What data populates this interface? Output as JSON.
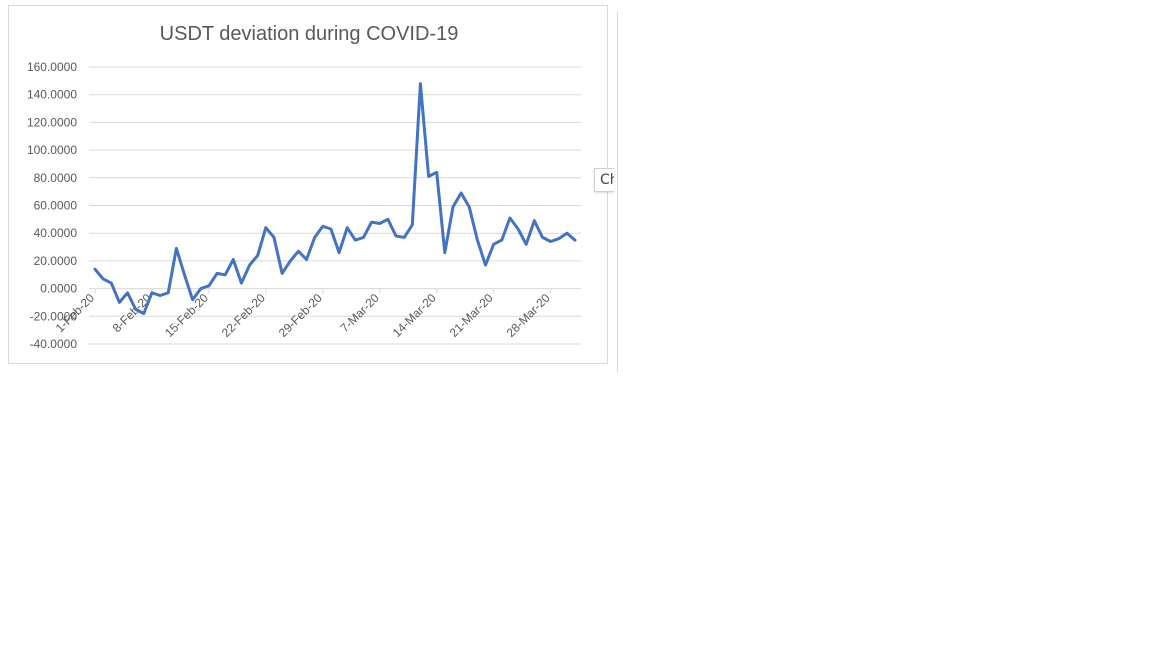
{
  "tooltip": {
    "label": "Ch"
  },
  "chart_data": {
    "type": "line",
    "title": "USDT deviation during COVID-19",
    "xlabel": "",
    "ylabel": "",
    "ylim": [
      -40,
      160
    ],
    "yticks": [
      "-40.0000",
      "-20.0000",
      "0.0000",
      "20.0000",
      "40.0000",
      "60.0000",
      "80.0000",
      "100.0000",
      "120.0000",
      "140.0000",
      "160.0000"
    ],
    "xticks": [
      "1-Feb-20",
      "8-Feb-20",
      "15-Feb-20",
      "22-Feb-20",
      "29-Feb-20",
      "7-Mar-20",
      "14-Mar-20",
      "21-Mar-20",
      "28-Mar-20"
    ],
    "grid": true,
    "legend": "none",
    "series_color": "#4472c4",
    "x_start": "1-Feb-20",
    "x_end": "31-Mar-20",
    "series": [
      {
        "values": [
          14,
          7,
          4,
          -10,
          -3,
          -15,
          -18,
          -3,
          -5,
          -3,
          29,
          10,
          -8,
          0,
          2,
          11,
          10,
          21,
          4,
          17,
          24,
          44,
          37,
          11,
          20,
          27,
          21,
          37,
          45,
          43,
          26,
          44,
          35,
          37,
          48,
          47,
          50,
          38,
          37,
          46,
          148,
          81,
          84,
          26,
          59,
          69,
          59,
          35,
          17,
          32,
          35,
          51,
          43,
          32,
          49,
          37,
          34,
          36,
          40,
          35
        ]
      }
    ]
  }
}
